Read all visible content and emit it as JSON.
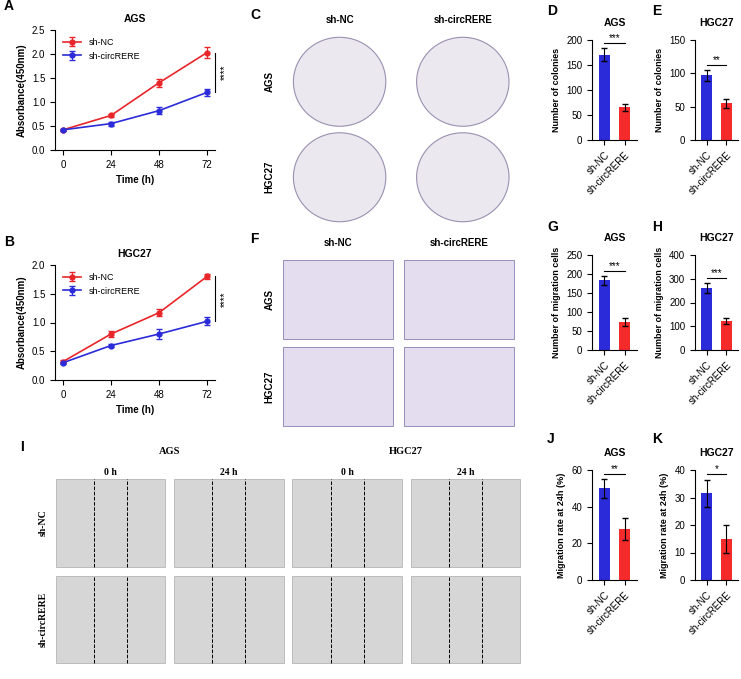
{
  "chart_data": [
    {
      "panel": "A",
      "type": "line",
      "title": "AGS",
      "x_label": "Time (h)",
      "y_label": "Absorbance(450nm)",
      "x": [
        0,
        24,
        48,
        72
      ],
      "series": [
        {
          "name": "sh-NC",
          "color": "#e8262a",
          "marker": "o",
          "values": [
            0.42,
            0.72,
            1.4,
            2.03
          ],
          "errors": [
            0.02,
            0.03,
            0.08,
            0.12
          ]
        },
        {
          "name": "sh-circRERE",
          "color": "#2b2bd9",
          "marker": "o",
          "values": [
            0.42,
            0.55,
            0.82,
            1.2
          ],
          "errors": [
            0.02,
            0.04,
            0.07,
            0.07
          ]
        }
      ],
      "xlim": [
        -4,
        76
      ],
      "xticks": [
        0,
        24,
        48,
        72
      ],
      "ylim": [
        0,
        2.5
      ],
      "yticks": [
        {
          "value": 0,
          "label": "0.0"
        },
        0.5,
        {
          "value": 1,
          "label": "1.0"
        },
        1.5,
        {
          "value": 2,
          "label": "2.0"
        },
        2.5
      ],
      "legend": "upper left",
      "annotations": [
        "****"
      ]
    },
    {
      "panel": "B",
      "type": "line",
      "title": "HGC27",
      "x_label": "Time (h)",
      "y_label": "Absorbance(450nm)",
      "x": [
        0,
        24,
        48,
        72
      ],
      "series": [
        {
          "name": "sh-NC",
          "color": "#e8262a",
          "marker": "o",
          "values": [
            0.32,
            0.8,
            1.17,
            1.8
          ],
          "errors": [
            0.03,
            0.05,
            0.06,
            0.05
          ]
        },
        {
          "name": "sh-circRERE",
          "color": "#2b2bd9",
          "marker": "o",
          "values": [
            0.3,
            0.6,
            0.8,
            1.02
          ],
          "errors": [
            0.02,
            0.03,
            0.08,
            0.07
          ]
        }
      ],
      "xlim": [
        -4,
        76
      ],
      "xticks": [
        0,
        24,
        48,
        72
      ],
      "ylim": [
        0,
        2.0
      ],
      "yticks": [
        {
          "value": 0,
          "label": "0.0"
        },
        0.5,
        {
          "value": 1,
          "label": "1.0"
        },
        1.5,
        {
          "value": 2,
          "label": "2.0"
        }
      ],
      "legend": "upper left",
      "annotations": [
        "****"
      ]
    },
    {
      "panel": "D",
      "type": "bar",
      "title": "AGS",
      "y_label": "Number of colonies",
      "categories": [
        "sh-NC",
        "sh-circRERE"
      ],
      "values": [
        170,
        65
      ],
      "errors": [
        13,
        7
      ],
      "colors": [
        "#2b2bd9",
        "#f52a2a"
      ],
      "ylim": [
        0,
        200
      ],
      "yticks": [
        0,
        50,
        100,
        150,
        200
      ],
      "annotations": [
        "***"
      ]
    },
    {
      "panel": "E",
      "type": "bar",
      "title": "HGC27",
      "y_label": "Number of colonies",
      "categories": [
        "sh-NC",
        "sh-circRERE"
      ],
      "values": [
        97,
        55
      ],
      "errors": [
        8,
        7
      ],
      "colors": [
        "#2b2bd9",
        "#f52a2a"
      ],
      "ylim": [
        0,
        150
      ],
      "yticks": [
        0,
        50,
        100,
        150
      ],
      "annotations": [
        "**"
      ]
    },
    {
      "panel": "G",
      "type": "bar",
      "title": "AGS",
      "y_label": "Number of migration cells",
      "categories": [
        "sh-NC",
        "sh-circRERE"
      ],
      "values": [
        183,
        73
      ],
      "errors": [
        13,
        10
      ],
      "colors": [
        "#2b2bd9",
        "#f52a2a"
      ],
      "ylim": [
        0,
        250
      ],
      "yticks": [
        0,
        50,
        100,
        150,
        200,
        250
      ],
      "annotations": [
        "***"
      ]
    },
    {
      "panel": "H",
      "type": "bar",
      "title": "HGC27",
      "y_label": "Number of migration cells",
      "categories": [
        "sh-NC",
        "sh-circRERE"
      ],
      "values": [
        262,
        122
      ],
      "errors": [
        22,
        13
      ],
      "colors": [
        "#2b2bd9",
        "#f52a2a"
      ],
      "ylim": [
        0,
        400
      ],
      "yticks": [
        0,
        100,
        200,
        300,
        400
      ],
      "annotations": [
        "***"
      ]
    },
    {
      "panel": "J",
      "type": "bar",
      "title": "AGS",
      "y_label": "Migration rate at 24h (%)",
      "categories": [
        "sh-NC",
        "sh-circRERE"
      ],
      "values": [
        50,
        28
      ],
      "errors": [
        5,
        6
      ],
      "colors": [
        "#2b2bd9",
        "#f52a2a"
      ],
      "ylim": [
        0,
        60
      ],
      "yticks": [
        0,
        20,
        40,
        60
      ],
      "annotations": [
        "**"
      ]
    },
    {
      "panel": "K",
      "type": "bar",
      "title": "HGC27",
      "y_label": "Migration rate at 24h (%)",
      "categories": [
        "sh-NC",
        "sh-circRERE"
      ],
      "values": [
        31.5,
        15
      ],
      "errors": [
        5,
        5
      ],
      "colors": [
        "#2b2bd9",
        "#f52a2a"
      ],
      "ylim": [
        0,
        40
      ],
      "yticks": [
        0,
        10,
        20,
        30,
        40
      ],
      "annotations": [
        "*"
      ]
    }
  ],
  "image_panels": [
    {
      "panel": "C",
      "columns": [
        "sh-NC",
        "sh-circRERE"
      ],
      "rows": [
        "AGS",
        "HGC27"
      ]
    },
    {
      "panel": "F",
      "columns": [
        "sh-NC",
        "sh-circRERE"
      ],
      "rows": [
        "AGS",
        "HGC27"
      ]
    },
    {
      "panel": "I",
      "groups": [
        "AGS",
        "HGC27"
      ],
      "columns": [
        "0 h",
        "24 h"
      ],
      "rows": [
        "sh-NC",
        "sh-circRERE"
      ]
    }
  ]
}
